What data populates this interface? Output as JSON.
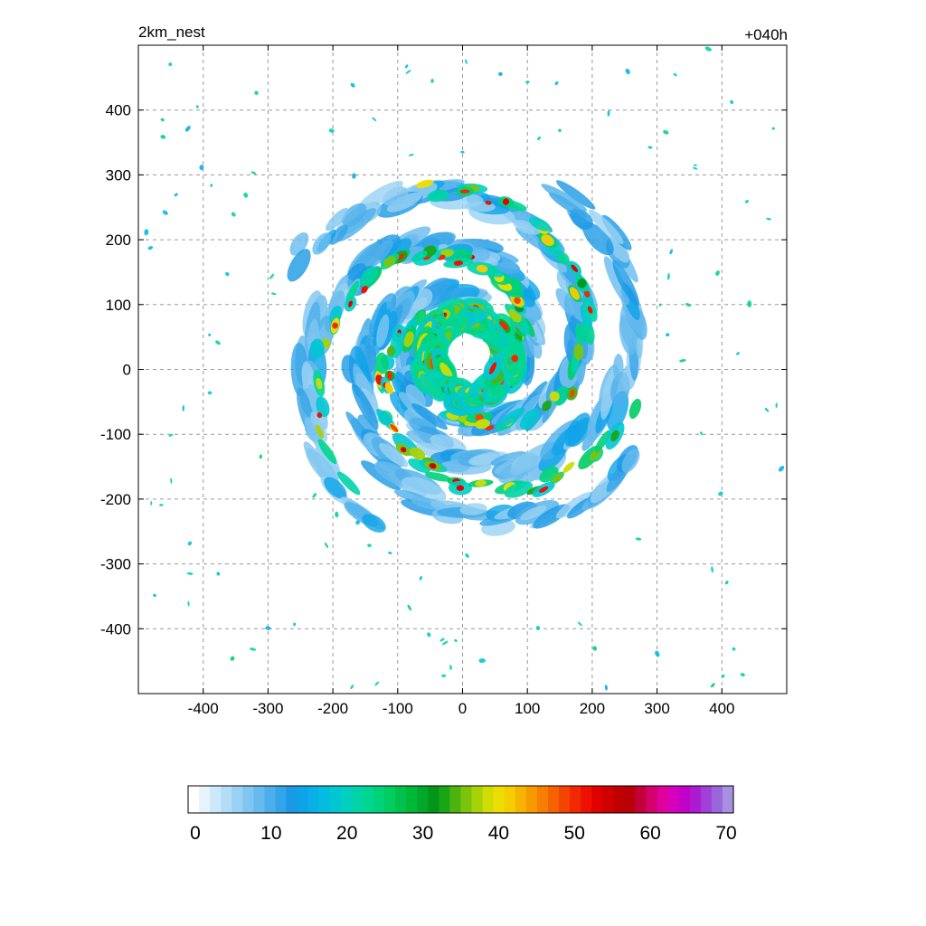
{
  "chart_data": {
    "type": "heatmap",
    "title_left": "2km_nest",
    "title_right": "+040h",
    "xlabel": "",
    "ylabel": "",
    "xlim": [
      -500,
      500
    ],
    "ylim": [
      -500,
      500
    ],
    "x_ticks": [
      -400,
      -300,
      -200,
      -100,
      0,
      100,
      200,
      300,
      400
    ],
    "y_ticks": [
      400,
      300,
      200,
      100,
      0,
      -100,
      -200,
      -300,
      -400
    ],
    "grid": true,
    "colorbar": {
      "orientation": "horizontal",
      "placement": "bottom",
      "range": [
        0,
        70
      ],
      "tick_values": [
        0,
        10,
        20,
        30,
        40,
        50,
        60,
        70
      ],
      "tick_labels": [
        "0",
        "10",
        "20",
        "30",
        "40",
        "50",
        "60",
        "70"
      ],
      "colors": [
        "#ffffff",
        "#e6f3fc",
        "#cce8f9",
        "#b3dcf6",
        "#99d1f3",
        "#80c6f0",
        "#66baed",
        "#4dafea",
        "#33a4e7",
        "#1a99e4",
        "#0ea2e8",
        "#08b0e6",
        "#04bce0",
        "#02c6d2",
        "#01cfc0",
        "#00d4a8",
        "#00d690",
        "#00d279",
        "#00cc60",
        "#00c24a",
        "#00b838",
        "#00a82a",
        "#00961c",
        "#1aa515",
        "#4cb410",
        "#7cc40c",
        "#a8d208",
        "#cfdc05",
        "#ecde02",
        "#f4cc00",
        "#f6b400",
        "#f79a00",
        "#f77e00",
        "#f66200",
        "#f44500",
        "#f22800",
        "#ee1000",
        "#e00000",
        "#d00000",
        "#c00000",
        "#b80008",
        "#c4003a",
        "#d4006c",
        "#e0009c",
        "#d600bc",
        "#c200c8",
        "#ae1ad0",
        "#a040d6",
        "#9a66dc",
        "#a890e0"
      ]
    },
    "field_description_units": "",
    "features": [
      {
        "kind": "eyewall",
        "center": [
          10,
          20
        ],
        "radius": 55,
        "max_value": 55
      },
      {
        "kind": "spiral_band",
        "arm": 1,
        "max_value": 52
      },
      {
        "kind": "spiral_band",
        "arm": 2,
        "max_value": 52
      },
      {
        "kind": "spiral_band",
        "arm": 3,
        "max_value": 48
      }
    ]
  }
}
